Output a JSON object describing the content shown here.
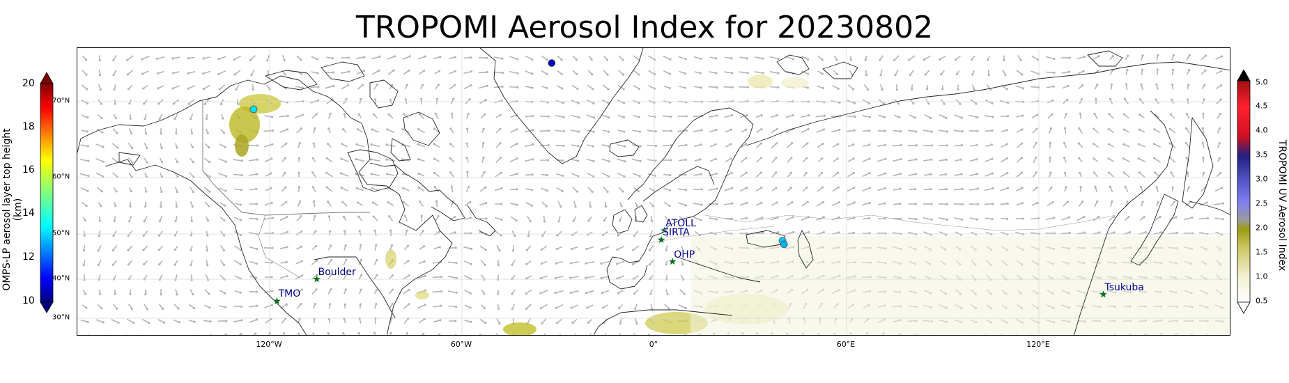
{
  "title": "TROPOMI Aerosol Index for 20230802",
  "map": {
    "lon_ticks": [
      {
        "lon": -120,
        "label": "120°W"
      },
      {
        "lon": -60,
        "label": "60°W"
      },
      {
        "lon": 0,
        "label": "0°"
      },
      {
        "lon": 60,
        "label": "60°E"
      },
      {
        "lon": 120,
        "label": "120°E"
      }
    ],
    "lat_ticks": [
      {
        "lat": 70,
        "label": "70°N"
      },
      {
        "lat": 60,
        "label": "60°N"
      },
      {
        "lat": 50,
        "label": "50°N"
      },
      {
        "lat": 40,
        "label": "40°N"
      },
      {
        "lat": 30,
        "label": "30°N"
      }
    ],
    "extent": {
      "lon_min": -180,
      "lon_max": 180,
      "lat_min": 27,
      "lat_max": 80
    },
    "stations": [
      {
        "name": "TMO",
        "lon": -117.7,
        "lat": 34.4
      },
      {
        "name": "Boulder",
        "lon": -105.3,
        "lat": 40.0
      },
      {
        "name": "ATOLL",
        "lon": 3.1,
        "lat": 50.6
      },
      {
        "name": "SIRTA",
        "lon": 2.2,
        "lat": 48.7
      },
      {
        "name": "OHP",
        "lon": 5.7,
        "lat": 43.9
      },
      {
        "name": "Tsukuba",
        "lon": 140.1,
        "lat": 36.1
      }
    ],
    "omps_points": [
      {
        "lon": -32,
        "lat": 77.2,
        "height_km": 10.6
      },
      {
        "lon": -125,
        "lat": 69.0,
        "height_km": 13.5
      },
      {
        "lon": 40,
        "lat": 48.5,
        "height_km": 13.2
      },
      {
        "lon": 40.5,
        "lat": 47.7,
        "height_km": 13.0
      }
    ],
    "colors": {
      "land_line": "#222222",
      "arrow": "#b4b4b4",
      "station": "#0b6e1a",
      "label": "#00008b"
    }
  },
  "colorbar_left": {
    "title": "OMPS-LP aerosol layer top height (km)",
    "ticks": [
      "20",
      "18",
      "16",
      "14",
      "12",
      "10"
    ],
    "colormap": "jet"
  },
  "colorbar_right": {
    "title": "TROPOMI UV Aerosol Index",
    "ticks": [
      "5.0",
      "4.5",
      "4.0",
      "3.5",
      "3.0",
      "2.5",
      "2.0",
      "1.5",
      "1.0",
      "0.5"
    ]
  }
}
